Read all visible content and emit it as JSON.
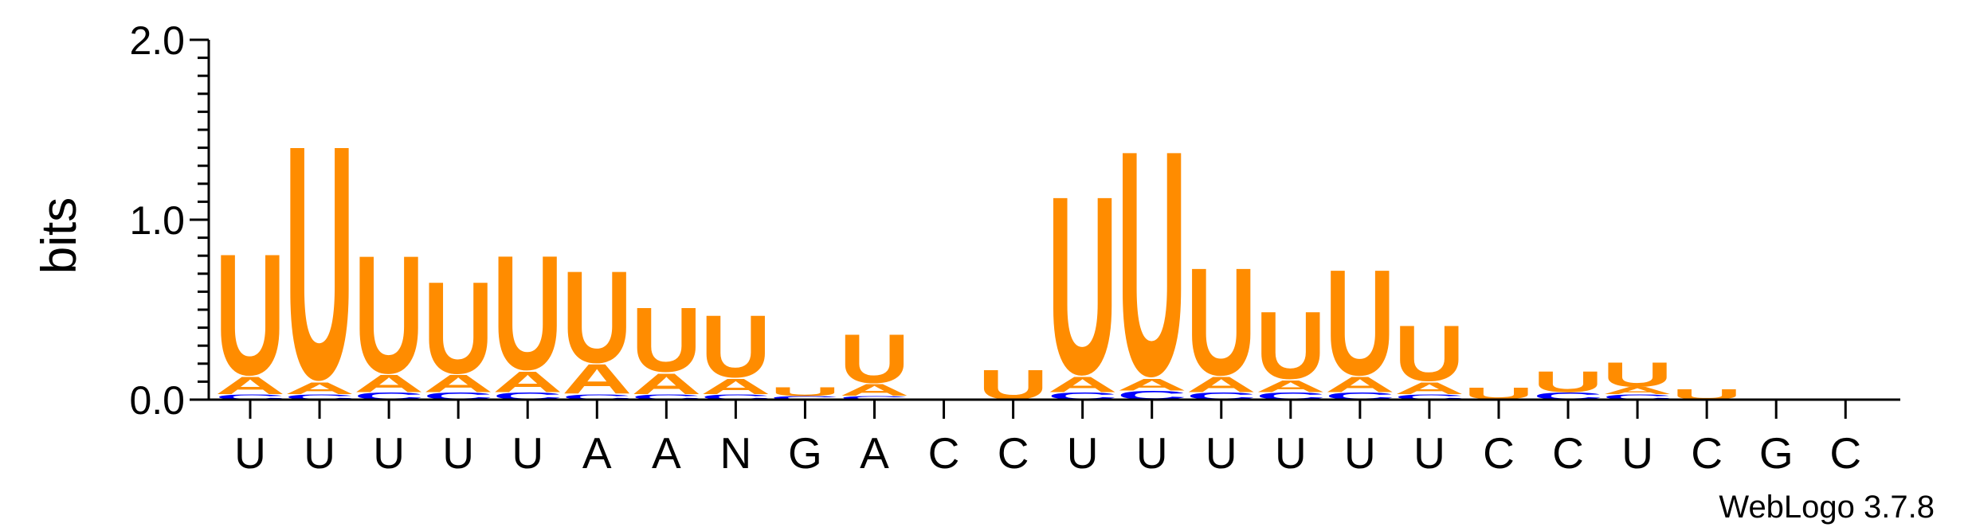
{
  "chart_data": {
    "type": "sequence-logo",
    "ylabel": "bits",
    "ylim": [
      0,
      2.0
    ],
    "yticks": [
      "0.0",
      "1.0",
      "2.0"
    ],
    "colors": {
      "U": "#ff8c00",
      "A": "#ff8c00",
      "C": "#0000ff",
      "G": "#0000ff"
    },
    "positions": [
      {
        "label": "U",
        "stack": [
          {
            "letter": "C",
            "bits": 0.03
          },
          {
            "letter": "A",
            "bits": 0.1
          },
          {
            "letter": "U",
            "bits": 0.7
          }
        ]
      },
      {
        "label": "U",
        "stack": [
          {
            "letter": "C",
            "bits": 0.03
          },
          {
            "letter": "A",
            "bits": 0.07
          },
          {
            "letter": "U",
            "bits": 1.35
          }
        ]
      },
      {
        "label": "U",
        "stack": [
          {
            "letter": "C",
            "bits": 0.04
          },
          {
            "letter": "A",
            "bits": 0.1
          },
          {
            "letter": "U",
            "bits": 0.68
          }
        ]
      },
      {
        "label": "U",
        "stack": [
          {
            "letter": "C",
            "bits": 0.04
          },
          {
            "letter": "A",
            "bits": 0.1
          },
          {
            "letter": "U",
            "bits": 0.53
          }
        ]
      },
      {
        "label": "U",
        "stack": [
          {
            "letter": "C",
            "bits": 0.04
          },
          {
            "letter": "A",
            "bits": 0.12
          },
          {
            "letter": "U",
            "bits": 0.66
          }
        ]
      },
      {
        "label": "A",
        "stack": [
          {
            "letter": "C",
            "bits": 0.03
          },
          {
            "letter": "A",
            "bits": 0.17
          },
          {
            "letter": "U",
            "bits": 0.53
          }
        ]
      },
      {
        "label": "A",
        "stack": [
          {
            "letter": "C",
            "bits": 0.03
          },
          {
            "letter": "A",
            "bits": 0.12
          },
          {
            "letter": "U",
            "bits": 0.37
          }
        ]
      },
      {
        "label": "N",
        "stack": [
          {
            "letter": "C",
            "bits": 0.03
          },
          {
            "letter": "A",
            "bits": 0.09
          },
          {
            "letter": "U",
            "bits": 0.36
          }
        ]
      },
      {
        "label": "G",
        "stack": [
          {
            "letter": "C",
            "bits": 0.02
          },
          {
            "letter": "U",
            "bits": 0.05
          }
        ]
      },
      {
        "label": "A",
        "stack": [
          {
            "letter": "C",
            "bits": 0.02
          },
          {
            "letter": "A",
            "bits": 0.07
          },
          {
            "letter": "U",
            "bits": 0.28
          }
        ]
      },
      {
        "label": "C",
        "stack": []
      },
      {
        "label": "C",
        "stack": [
          {
            "letter": "U",
            "bits": 0.17
          }
        ]
      },
      {
        "label": "U",
        "stack": [
          {
            "letter": "C",
            "bits": 0.04
          },
          {
            "letter": "A",
            "bits": 0.09
          },
          {
            "letter": "U",
            "bits": 1.03
          }
        ]
      },
      {
        "label": "U",
        "stack": [
          {
            "letter": "C",
            "bits": 0.05
          },
          {
            "letter": "A",
            "bits": 0.07
          },
          {
            "letter": "U",
            "bits": 1.3
          }
        ]
      },
      {
        "label": "U",
        "stack": [
          {
            "letter": "C",
            "bits": 0.04
          },
          {
            "letter": "A",
            "bits": 0.09
          },
          {
            "letter": "U",
            "bits": 0.62
          }
        ]
      },
      {
        "label": "U",
        "stack": [
          {
            "letter": "C",
            "bits": 0.04
          },
          {
            "letter": "A",
            "bits": 0.07
          },
          {
            "letter": "U",
            "bits": 0.39
          }
        ]
      },
      {
        "label": "U",
        "stack": [
          {
            "letter": "C",
            "bits": 0.04
          },
          {
            "letter": "A",
            "bits": 0.09
          },
          {
            "letter": "U",
            "bits": 0.61
          }
        ]
      },
      {
        "label": "U",
        "stack": [
          {
            "letter": "C",
            "bits": 0.03
          },
          {
            "letter": "A",
            "bits": 0.07
          },
          {
            "letter": "U",
            "bits": 0.32
          }
        ]
      },
      {
        "label": "C",
        "stack": [
          {
            "letter": "U",
            "bits": 0.07
          }
        ]
      },
      {
        "label": "C",
        "stack": [
          {
            "letter": "C",
            "bits": 0.04
          },
          {
            "letter": "U",
            "bits": 0.12
          }
        ]
      },
      {
        "label": "U",
        "stack": [
          {
            "letter": "C",
            "bits": 0.03
          },
          {
            "letter": "A",
            "bits": 0.04
          },
          {
            "letter": "U",
            "bits": 0.14
          }
        ]
      },
      {
        "label": "C",
        "stack": [
          {
            "letter": "U",
            "bits": 0.06
          }
        ]
      },
      {
        "label": "G",
        "stack": []
      },
      {
        "label": "C",
        "stack": []
      }
    ]
  },
  "footer": {
    "credit": "WebLogo 3.7.8"
  }
}
